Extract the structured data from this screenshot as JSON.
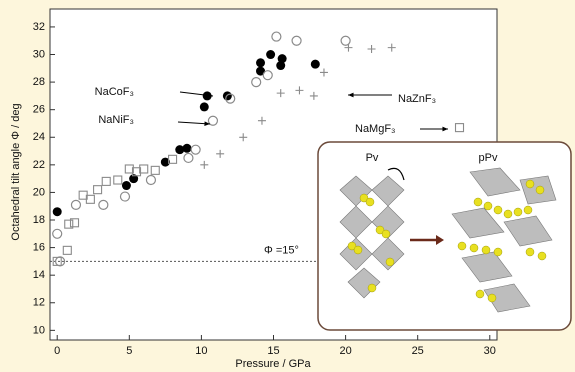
{
  "chart_data": {
    "type": "scatter",
    "xlabel": "Pressure / GPa",
    "ylabel": "Octahedral tilt angle Φ / deg",
    "xlim": [
      -0.5,
      30.5
    ],
    "ylim": [
      9.3,
      33.3
    ],
    "xticks": [
      0,
      5,
      10,
      15,
      20,
      25,
      30
    ],
    "yticks": [
      10,
      12,
      14,
      16,
      18,
      20,
      22,
      24,
      26,
      28,
      30,
      32
    ],
    "reference_line": {
      "value": 15,
      "label": "Φ =15°"
    },
    "series": [
      {
        "name": "NaCoF₃",
        "marker": "filled-circle",
        "color": "#000000",
        "x": [
          0,
          4.8,
          5.3,
          7.5,
          8.5,
          9.0,
          10.2,
          10.4,
          11.8,
          14.1,
          14.1,
          14.8,
          15.5,
          15.6,
          17.9
        ],
        "values": [
          18.6,
          20.5,
          21.0,
          22.2,
          23.1,
          23.2,
          26.2,
          27.0,
          27.0,
          28.8,
          29.4,
          30.0,
          29.2,
          29.7,
          29.3
        ]
      },
      {
        "name": "NaNiF₃",
        "marker": "open-circle",
        "color": "#8a8a8a",
        "x": [
          0,
          0.2,
          1.3,
          3.2,
          4.7,
          6.5,
          9.1,
          9.6,
          10.8,
          12.0,
          13.8,
          14.6,
          15.2,
          16.6,
          20.0
        ],
        "values": [
          17.0,
          15.0,
          19.1,
          19.1,
          19.7,
          20.9,
          22.5,
          23.1,
          25.2,
          26.8,
          28.0,
          28.5,
          31.3,
          31.0,
          31.0
        ]
      },
      {
        "name": "NaZnF₃",
        "marker": "plus",
        "color": "#8a8a8a",
        "x": [
          10.2,
          11.3,
          12.9,
          14.2,
          15.5,
          16.8,
          17.8,
          18.5,
          20.2,
          21.8,
          23.2
        ],
        "values": [
          22.0,
          22.8,
          24.0,
          25.2,
          27.2,
          27.4,
          27.0,
          28.7,
          30.5,
          30.4,
          30.5
        ]
      },
      {
        "name": "NaMgF₃",
        "marker": "open-square",
        "color": "#8a8a8a",
        "x": [
          0,
          0.7,
          0.8,
          1.2,
          1.8,
          2.3,
          2.8,
          3.4,
          4.2,
          5.0,
          5.5,
          6.0,
          6.8,
          8.0,
          27.9
        ],
        "values": [
          15.0,
          15.8,
          17.7,
          17.8,
          19.8,
          19.5,
          20.2,
          20.8,
          20.9,
          21.7,
          21.5,
          21.7,
          21.6,
          22.4,
          24.7
        ]
      }
    ],
    "inset": {
      "labels": [
        "Pv",
        "pPv"
      ]
    }
  }
}
